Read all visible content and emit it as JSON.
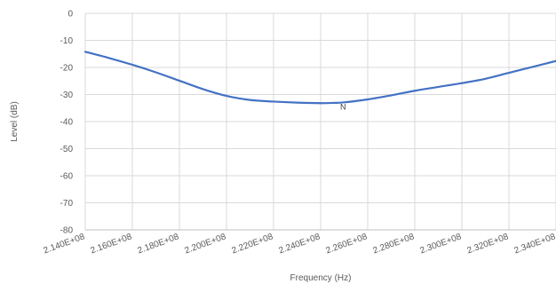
{
  "chart_data": {
    "type": "line",
    "xlabel": "Frequency (Hz)",
    "ylabel": "Level (dB)",
    "xlim": [
      214000000,
      234000000
    ],
    "ylim": [
      -80,
      0
    ],
    "grid": true,
    "x_ticks": [
      214000000,
      216000000,
      218000000,
      220000000,
      222000000,
      224000000,
      226000000,
      228000000,
      230000000,
      232000000,
      234000000
    ],
    "x_tick_labels": [
      "2.140E+08",
      "2.160E+08",
      "2.180E+08",
      "2.200E+08",
      "2.220E+08",
      "2.240E+08",
      "2.260E+08",
      "2.280E+08",
      "2.300E+08",
      "2.320E+08",
      "2.340E+08"
    ],
    "y_ticks": [
      0,
      -10,
      -20,
      -30,
      -40,
      -50,
      -60,
      -70,
      -80
    ],
    "y_tick_labels": [
      "0",
      "-10",
      "-20",
      "-30",
      "-40",
      "-50",
      "-60",
      "-70",
      "-80"
    ],
    "series": [
      {
        "color": "#4472c4",
        "x": [
          214000000,
          215000000,
          216000000,
          217000000,
          218000000,
          219000000,
          220000000,
          221000000,
          222000000,
          223000000,
          224000000,
          224500000,
          225000000,
          226000000,
          227000000,
          228000000,
          229000000,
          230000000,
          231000000,
          232000000,
          233000000,
          234000000
        ],
        "y": [
          -14.2,
          -16.5,
          -19.0,
          -21.8,
          -24.9,
          -28.0,
          -30.5,
          -32.0,
          -32.6,
          -33.0,
          -33.2,
          -33.1,
          -32.9,
          -31.8,
          -30.3,
          -28.6,
          -27.2,
          -25.8,
          -24.2,
          -22.0,
          -19.8,
          -17.6
        ]
      }
    ],
    "annotations": [
      {
        "text": "N",
        "x": 224500000,
        "y": -34
      }
    ]
  }
}
